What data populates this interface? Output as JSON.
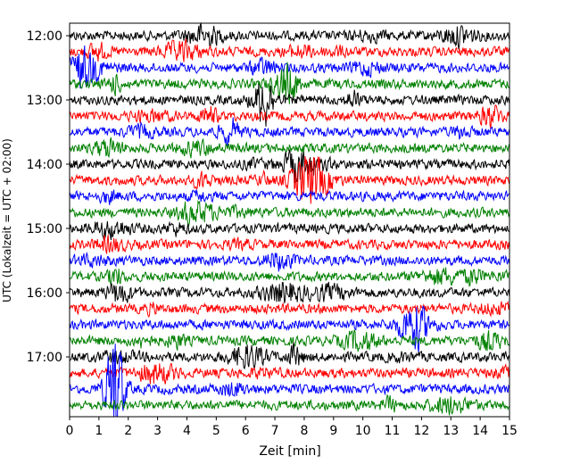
{
  "chart_data": {
    "type": "line",
    "title": "",
    "xlabel": "Zeit  [min]",
    "ylabel": "UTC (Lokalzeit = UTC + 02:00)",
    "x_range": [
      0,
      15
    ],
    "x_ticks": [
      "0",
      "1",
      "2",
      "3",
      "4",
      "5",
      "6",
      "7",
      "8",
      "9",
      "10",
      "11",
      "12",
      "13",
      "14",
      "15"
    ],
    "y_ticks": [
      "12:00",
      "13:00",
      "14:00",
      "15:00",
      "16:00",
      "17:00"
    ],
    "trace_interval_min": 15,
    "first_trace": "12:00",
    "last_trace": "17:45",
    "trace_count": 24,
    "trace_colors": [
      "#000000",
      "#ff0000",
      "#0000ff",
      "#008000"
    ],
    "grid": false,
    "legend": "none"
  }
}
